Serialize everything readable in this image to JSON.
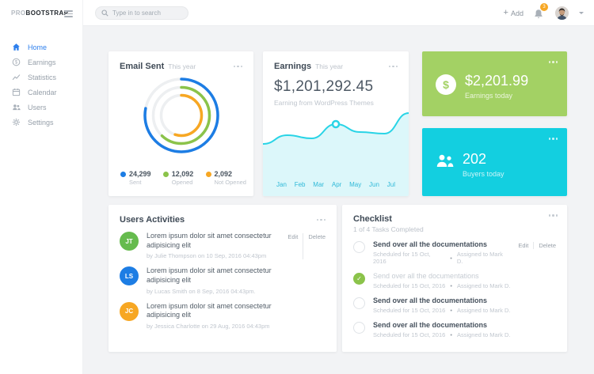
{
  "brand": {
    "name_light": "PRO",
    "name_bold": "BOOTSTRAP"
  },
  "topbar": {
    "search_placeholder": "Type in to search",
    "add_label": "Add",
    "notification_count": "3"
  },
  "sidebar": {
    "items": [
      {
        "label": "Home",
        "icon": "home-icon",
        "active": true
      },
      {
        "label": "Earnings",
        "icon": "dollar-icon",
        "active": false
      },
      {
        "label": "Statistics",
        "icon": "stats-icon",
        "active": false
      },
      {
        "label": "Calendar",
        "icon": "calendar-icon",
        "active": false
      },
      {
        "label": "Users",
        "icon": "users-icon",
        "active": false
      },
      {
        "label": "Settings",
        "icon": "gear-icon",
        "active": false
      }
    ]
  },
  "email_card": {
    "title": "Email Sent",
    "subtitle": "This year",
    "legend": [
      {
        "value": "24,299",
        "label": "Sent",
        "color": "#1d7de4"
      },
      {
        "value": "12,092",
        "label": "Opened",
        "color": "#8bc34a"
      },
      {
        "value": "2,092",
        "label": "Not Opened",
        "color": "#f7a723"
      }
    ]
  },
  "earnings_card": {
    "title": "Earnings",
    "subtitle": "This year",
    "value": "$1,201,292.45",
    "caption": "Earning from WordPress Themes",
    "months": [
      "Jan",
      "Feb",
      "Mar",
      "Apr",
      "May",
      "Jun",
      "Jul"
    ]
  },
  "earnings_today_card": {
    "value": "$2,201.99",
    "label": "Earnings today",
    "bg": "#a3d164"
  },
  "buyers_today_card": {
    "value": "202",
    "label": "Buyers today",
    "bg": "#13cfe0"
  },
  "activities": {
    "title": "Users Activities",
    "edit_label": "Edit",
    "delete_label": "Delete",
    "items": [
      {
        "initials": "JT",
        "avatar_color": "#66bb4e",
        "text": "Lorem ipsum dolor sit amet consectetur adipisicing elit",
        "byline": "by Julie Thompson on 10 Sep, 2016 04:43pm"
      },
      {
        "initials": "LS",
        "avatar_color": "#1d7de4",
        "text": "Lorem ipsum dolor sit amet consectetur adipisicing elit",
        "byline": "by Lucas Smith on 8 Sep, 2016 04:43pm."
      },
      {
        "initials": "JC",
        "avatar_color": "#f7a723",
        "text": "Lorem ipsum dolor sit amet consectetur adipisicing elit",
        "byline": "by Jessica Charlotte on 29 Aug, 2016 04:43pm"
      }
    ]
  },
  "checklist": {
    "title": "Checklist",
    "subtitle": "1 of 4 Tasks Completed",
    "edit_label": "Edit",
    "delete_label": "Delete",
    "meta_separator": "•",
    "items": [
      {
        "title": "Send over all the documentations",
        "scheduled": "Scheduled for 15 Oct, 2016",
        "assigned": "Assigned to Mark D.",
        "checked": false
      },
      {
        "title": "Send over all the documentations",
        "scheduled": "Scheduled for 15 Oct, 2016",
        "assigned": "Assigned to Mark D.",
        "checked": true
      },
      {
        "title": "Send over all the documentations",
        "scheduled": "Scheduled for 15 Oct, 2016",
        "assigned": "Assigned to Mark D.",
        "checked": false
      },
      {
        "title": "Send over all the documentations",
        "scheduled": "Scheduled for 15 Oct, 2016",
        "assigned": "Assigned to Mark D.",
        "checked": false
      }
    ]
  },
  "chart_data": [
    {
      "type": "donut",
      "title": "Email Sent This year",
      "legend_position": "bottom",
      "series": [
        {
          "name": "Sent",
          "value": 24299,
          "color": "#1d7de4",
          "arc_fraction": 0.78
        },
        {
          "name": "Opened",
          "value": 12092,
          "color": "#8bc34a",
          "arc_fraction": 0.62
        },
        {
          "name": "Not Opened",
          "value": 2092,
          "color": "#f7a723",
          "arc_fraction": 0.55
        }
      ],
      "track_color": "#edeff1"
    },
    {
      "type": "area",
      "title": "Earnings This year",
      "x": [
        "Jan",
        "Feb",
        "Mar",
        "Apr",
        "May",
        "Jun",
        "Jul"
      ],
      "values": [
        33,
        44,
        40,
        58,
        48,
        46,
        72
      ],
      "ylim": [
        0,
        90
      ],
      "marker_index": 3,
      "line_color": "#29d4e6",
      "fill_color": "#dcf7fa",
      "grid": false
    }
  ]
}
